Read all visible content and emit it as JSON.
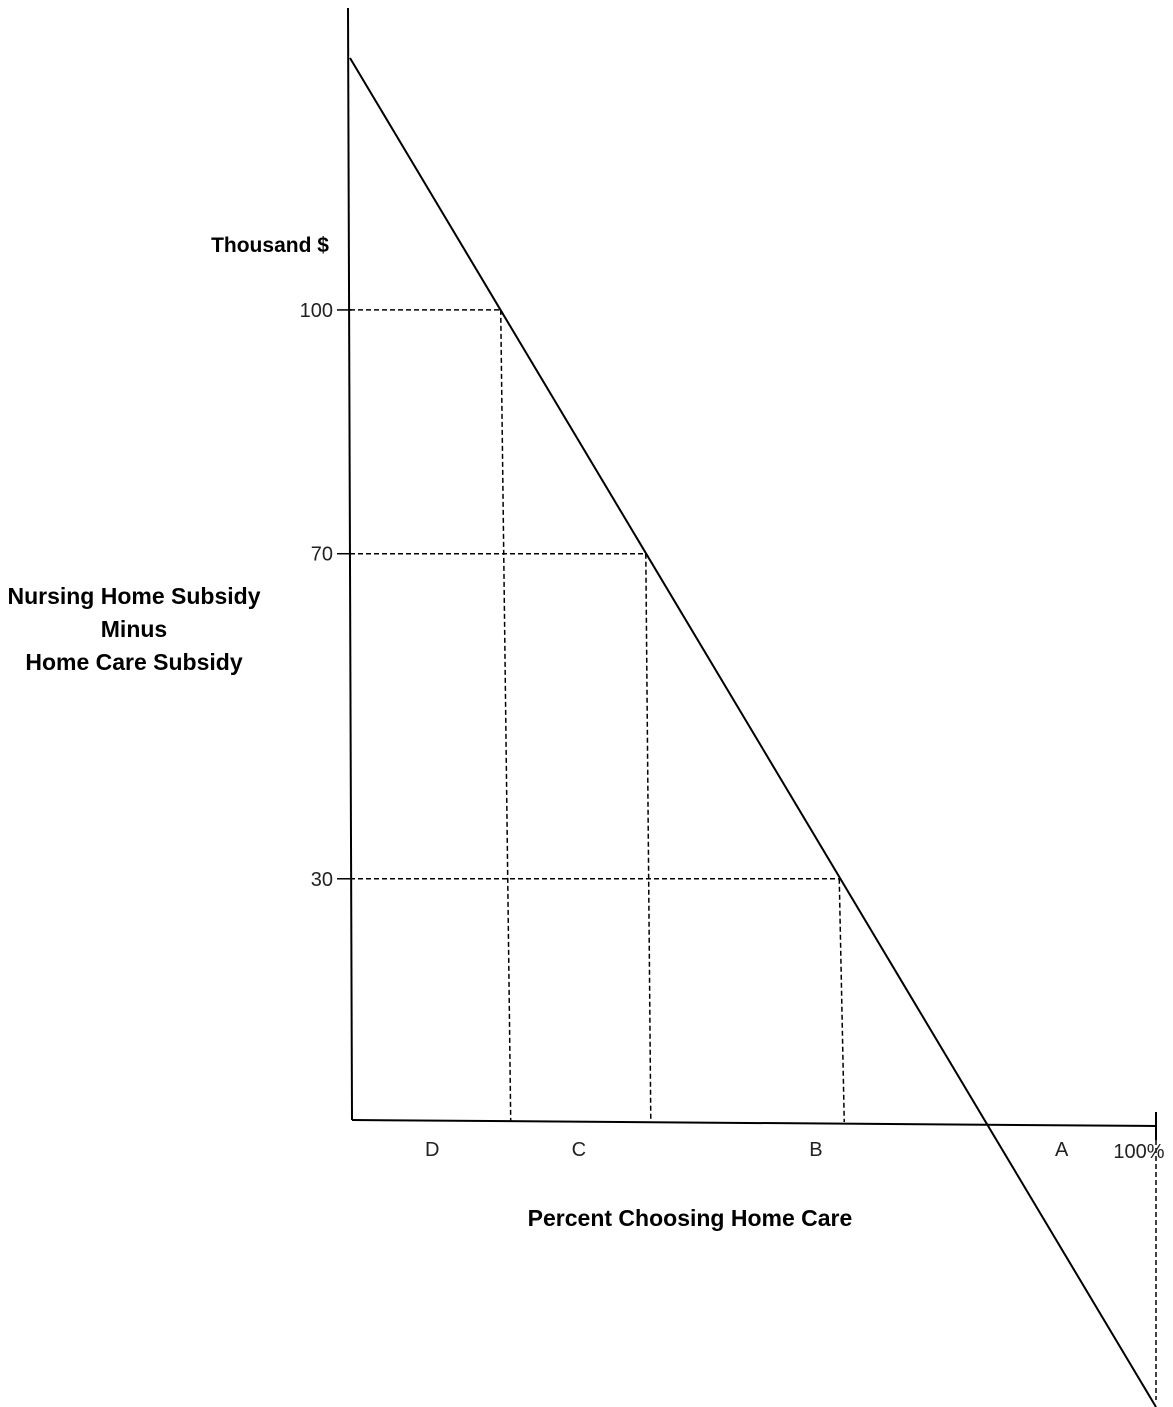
{
  "chart_data": {
    "type": "line",
    "xlabel": "Percent Choosing Home Care",
    "ylabel_lines": [
      "Nursing Home Subsidy",
      "Minus",
      "Home Care Subsidy"
    ],
    "y_unit": "Thousand $",
    "y_ticks": [
      {
        "value": 100,
        "label": "100"
      },
      {
        "value": 70,
        "label": "70"
      },
      {
        "value": 30,
        "label": "30"
      }
    ],
    "x_end_label": "100%",
    "xlim": [
      0,
      100
    ],
    "ylim": [
      -35,
      131
    ],
    "series": [
      {
        "values": [
          {
            "x": 0,
            "y": 131
          },
          {
            "x": 100,
            "y": -35
          }
        ]
      }
    ],
    "guides": [
      {
        "y": 100,
        "x": 18.7
      },
      {
        "y": 70,
        "x": 36.7
      },
      {
        "y": 30,
        "x": 60.7
      }
    ],
    "regions": [
      {
        "label": "D",
        "x": 10.2
      },
      {
        "label": "C",
        "x": 28.4
      },
      {
        "label": "B",
        "x": 57.8
      },
      {
        "label": "A",
        "x": 88.3
      }
    ]
  }
}
